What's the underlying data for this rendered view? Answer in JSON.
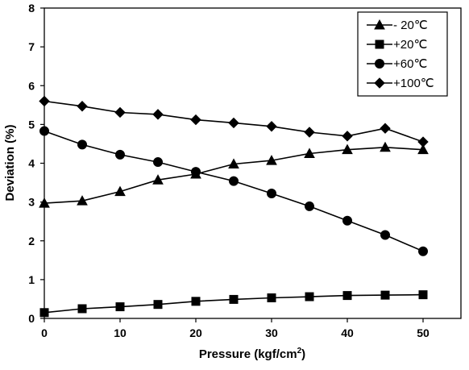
{
  "chart_data": {
    "type": "line",
    "title": "",
    "xlabel": "Pressure (kgf/cm",
    "xlabel_sup": "2",
    "xlabel_end": ")",
    "ylabel": "Deviation (%)",
    "xlim": [
      0,
      55
    ],
    "ylim": [
      0,
      8
    ],
    "x_ticks": [
      "0",
      "10",
      "20",
      "30",
      "40",
      "50"
    ],
    "y_ticks": [
      "0",
      "1",
      "2",
      "3",
      "4",
      "5",
      "6",
      "7",
      "8"
    ],
    "grid": false,
    "legend_position": "top-right",
    "x": [
      0,
      5,
      10,
      15,
      20,
      25,
      30,
      35,
      40,
      45,
      50
    ],
    "series": [
      {
        "name": "- 20℃",
        "marker": "triangle",
        "values": [
          2.97,
          3.03,
          3.27,
          3.57,
          3.72,
          3.98,
          4.07,
          4.25,
          4.35,
          4.41,
          4.35
        ]
      },
      {
        "name": "+20℃",
        "marker": "square",
        "values": [
          0.15,
          0.25,
          0.3,
          0.36,
          0.44,
          0.49,
          0.53,
          0.56,
          0.59,
          0.6,
          0.61
        ]
      },
      {
        "name": "+60℃",
        "marker": "circle",
        "values": [
          4.83,
          4.48,
          4.22,
          4.03,
          3.78,
          3.54,
          3.22,
          2.89,
          2.52,
          2.15,
          1.73
        ]
      },
      {
        "name": "+100℃",
        "marker": "diamond",
        "values": [
          5.6,
          5.47,
          5.31,
          5.26,
          5.12,
          5.04,
          4.95,
          4.8,
          4.7,
          4.9,
          4.55
        ]
      }
    ]
  }
}
